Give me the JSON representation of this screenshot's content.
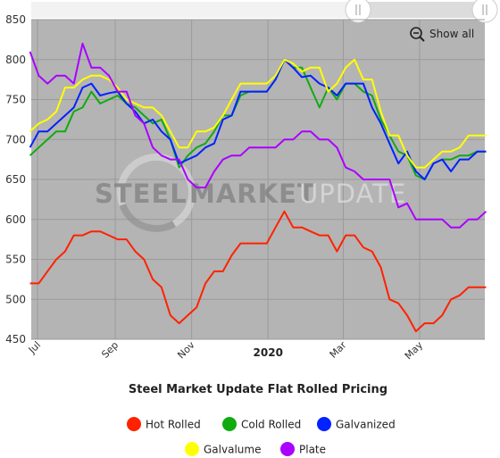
{
  "show_all_label": "Show all",
  "watermark": {
    "word1": "STEEL",
    "word2": "MARKET",
    "word3": "UPDATE"
  },
  "chart_data": {
    "type": "line",
    "title": "Steel Market Update Flat Rolled Pricing",
    "xlabel": "",
    "ylabel": "",
    "ylim": [
      450,
      850
    ],
    "yticks": [
      450,
      500,
      550,
      600,
      650,
      700,
      750,
      800,
      850
    ],
    "x_range": [
      "2019-06-26",
      "2020-06-22"
    ],
    "x_ticks": [
      {
        "date": "2019-07-01",
        "label": "Jul",
        "bold": false
      },
      {
        "date": "2019-09-01",
        "label": "Sep",
        "bold": false
      },
      {
        "date": "2019-11-01",
        "label": "Nov",
        "bold": false
      },
      {
        "date": "2020-01-01",
        "label": "2020",
        "bold": true
      },
      {
        "date": "2020-03-01",
        "label": "Mar",
        "bold": false
      },
      {
        "date": "2020-05-01",
        "label": "May",
        "bold": false
      }
    ],
    "grid": true,
    "legend_position": "bottom",
    "x": [
      "2019-06-25",
      "2019-07-02",
      "2019-07-09",
      "2019-07-16",
      "2019-07-23",
      "2019-07-30",
      "2019-08-06",
      "2019-08-13",
      "2019-08-20",
      "2019-08-27",
      "2019-09-03",
      "2019-09-10",
      "2019-09-17",
      "2019-09-24",
      "2019-10-01",
      "2019-10-08",
      "2019-10-15",
      "2019-10-22",
      "2019-10-29",
      "2019-11-05",
      "2019-11-12",
      "2019-11-19",
      "2019-11-26",
      "2019-12-03",
      "2019-12-10",
      "2019-12-17",
      "2019-12-24",
      "2019-12-31",
      "2020-01-07",
      "2020-01-14",
      "2020-01-21",
      "2020-01-28",
      "2020-02-04",
      "2020-02-11",
      "2020-02-18",
      "2020-02-25",
      "2020-03-03",
      "2020-03-10",
      "2020-03-17",
      "2020-03-24",
      "2020-03-31",
      "2020-04-07",
      "2020-04-14",
      "2020-04-21",
      "2020-04-28",
      "2020-05-05",
      "2020-05-12",
      "2020-05-19",
      "2020-05-26",
      "2020-06-02",
      "2020-06-09",
      "2020-06-16",
      "2020-06-23"
    ],
    "series": [
      {
        "name": "Hot Rolled",
        "color": "#ff2200",
        "values": [
          520,
          520,
          535,
          550,
          560,
          580,
          580,
          585,
          585,
          580,
          575,
          575,
          560,
          550,
          525,
          515,
          480,
          470,
          480,
          490,
          520,
          535,
          535,
          555,
          570,
          570,
          570,
          570,
          590,
          610,
          590,
          590,
          585,
          580,
          580,
          560,
          580,
          580,
          565,
          560,
          540,
          500,
          495,
          480,
          460,
          470,
          470,
          480,
          500,
          505,
          515,
          515,
          515
        ]
      },
      {
        "name": "Cold Rolled",
        "color": "#11aa11",
        "values": [
          680,
          690,
          700,
          710,
          710,
          735,
          740,
          760,
          745,
          750,
          755,
          745,
          740,
          730,
          720,
          725,
          700,
          665,
          680,
          690,
          695,
          710,
          730,
          730,
          755,
          760,
          760,
          760,
          775,
          800,
          790,
          790,
          765,
          740,
          765,
          750,
          770,
          770,
          760,
          755,
          725,
          705,
          685,
          680,
          655,
          650,
          670,
          675,
          675,
          680,
          680,
          685,
          685
        ]
      },
      {
        "name": "Galvanized",
        "color": "#0022ff",
        "values": [
          690,
          710,
          710,
          720,
          730,
          740,
          765,
          770,
          755,
          758,
          760,
          745,
          735,
          720,
          725,
          710,
          700,
          670,
          675,
          680,
          690,
          695,
          725,
          730,
          760,
          760,
          760,
          760,
          775,
          800,
          790,
          778,
          780,
          770,
          765,
          755,
          770,
          770,
          770,
          740,
          720,
          695,
          670,
          685,
          660,
          650,
          670,
          675,
          660,
          675,
          675,
          685,
          685
        ]
      },
      {
        "name": "Galvalume",
        "color": "#ffff00",
        "values": [
          710,
          720,
          725,
          735,
          765,
          765,
          775,
          780,
          780,
          775,
          765,
          750,
          745,
          740,
          740,
          730,
          710,
          690,
          690,
          710,
          710,
          715,
          730,
          750,
          770,
          770,
          770,
          770,
          780,
          800,
          795,
          785,
          790,
          790,
          760,
          770,
          790,
          800,
          775,
          775,
          735,
          705,
          705,
          680,
          665,
          665,
          675,
          685,
          685,
          690,
          705,
          705,
          705
        ]
      },
      {
        "name": "Plate",
        "color": "#aa00ff",
        "values": [
          810,
          780,
          770,
          780,
          780,
          770,
          820,
          790,
          790,
          780,
          760,
          760,
          730,
          720,
          690,
          680,
          675,
          675,
          650,
          640,
          640,
          660,
          675,
          680,
          680,
          690,
          690,
          690,
          690,
          700,
          700,
          710,
          710,
          700,
          700,
          690,
          665,
          660,
          650,
          650,
          650,
          650,
          615,
          620,
          600,
          600,
          600,
          600,
          590,
          590,
          600,
          600,
          610
        ]
      }
    ]
  }
}
